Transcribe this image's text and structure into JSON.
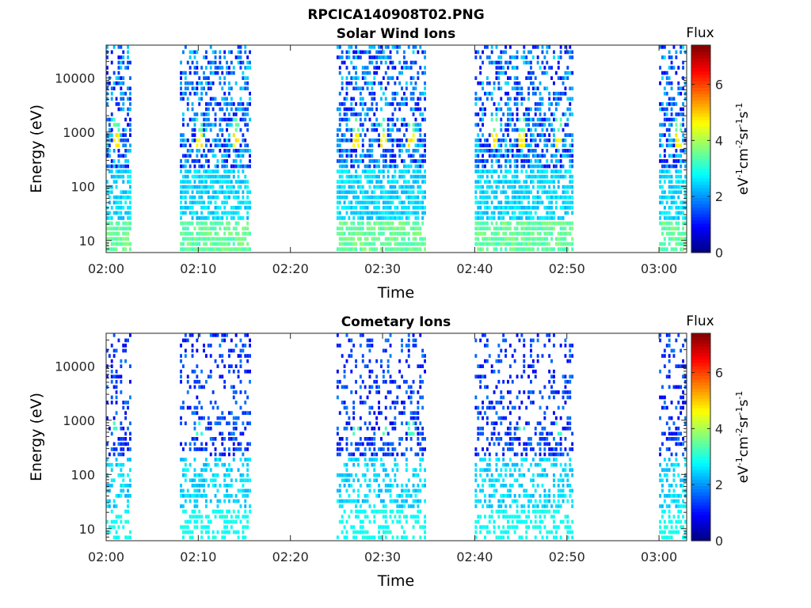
{
  "figure": {
    "title": "RPCICA140908T02.PNG"
  },
  "chart_data": [
    {
      "type": "heatmap",
      "title": "Solar Wind Ions",
      "xlabel": "Time",
      "ylabel": "Energy (eV)",
      "x_ticks": [
        "02:00",
        "02:10",
        "02:20",
        "02:30",
        "02:40",
        "02:50",
        "03:00"
      ],
      "y_ticks": [
        "10",
        "100",
        "1000",
        "10000"
      ],
      "y_scale": "log",
      "xlim": [
        "02:00",
        "03:03"
      ],
      "ylim": [
        6,
        40000
      ],
      "colorbar": {
        "label": "Flux",
        "units": "eV-1cm-2sr-1s-1",
        "ticks": [
          "0",
          "2",
          "4",
          "6"
        ],
        "range": [
          0,
          7.4
        ]
      },
      "active_intervals": [
        {
          "start": "02:00",
          "end": "02:02",
          "level": 1.0
        },
        {
          "start": "02:08",
          "end": "02:15",
          "level": 1.0
        },
        {
          "start": "02:25",
          "end": "02:34",
          "level": 1.0
        },
        {
          "start": "02:40",
          "end": "02:50",
          "level": 1.0
        },
        {
          "start": "03:00",
          "end": "03:03",
          "level": 1.0
        }
      ],
      "peak_times": [
        "02:01",
        "02:10",
        "02:14",
        "02:27",
        "02:30",
        "02:33",
        "02:42",
        "02:45",
        "02:49",
        "03:02"
      ],
      "peak_energy_eV": 650,
      "peak_flux": 4.5
    },
    {
      "type": "heatmap",
      "title": "Cometary Ions",
      "xlabel": "Time",
      "ylabel": "Energy (eV)",
      "x_ticks": [
        "02:00",
        "02:10",
        "02:20",
        "02:30",
        "02:40",
        "02:50",
        "03:00"
      ],
      "y_ticks": [
        "10",
        "100",
        "1000",
        "10000"
      ],
      "y_scale": "log",
      "xlim": [
        "02:00",
        "03:03"
      ],
      "ylim": [
        6,
        40000
      ],
      "colorbar": {
        "label": "Flux",
        "units": "eV-1cm-2sr-1s-1",
        "ticks": [
          "0",
          "2",
          "4",
          "6"
        ],
        "range": [
          0,
          7.4
        ]
      },
      "active_intervals": [
        {
          "start": "02:00",
          "end": "02:02",
          "level": 0.6
        },
        {
          "start": "02:08",
          "end": "02:15",
          "level": 0.6
        },
        {
          "start": "02:25",
          "end": "02:34",
          "level": 0.6
        },
        {
          "start": "02:40",
          "end": "02:50",
          "level": 0.6
        },
        {
          "start": "03:00",
          "end": "03:03",
          "level": 0.6
        }
      ],
      "peak_times": [
        "02:01",
        "02:10",
        "02:27",
        "02:30",
        "02:33",
        "02:45",
        "02:49"
      ],
      "peak_energy_eV": 650,
      "peak_flux": 3.0
    }
  ]
}
